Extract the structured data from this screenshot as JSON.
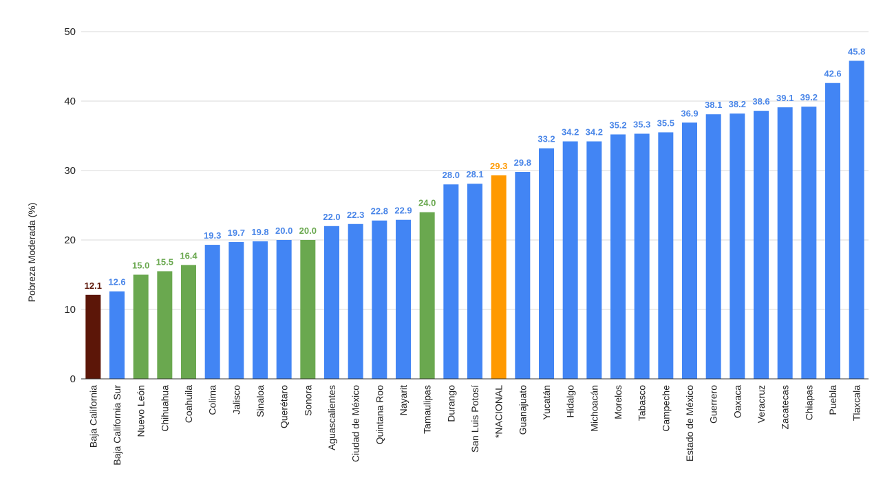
{
  "chart_data": {
    "type": "bar",
    "ylabel": "Pobreza Moderada (%)",
    "xlabel": "",
    "ylim": [
      0,
      50
    ],
    "yticks": [
      0,
      10,
      20,
      30,
      40,
      50
    ],
    "grid": true,
    "legend": "none",
    "categories": [
      "Baja California",
      "Baja California Sur",
      "Nuevo León",
      "Chihuahua",
      "Coahuila",
      "Colima",
      "Jalisco",
      "Sinaloa",
      "Querétaro",
      "Sonora",
      "Aguascalientes",
      "Ciudad de México",
      "Quintana Roo",
      "Nayarit",
      "Tamaulipas",
      "Durango",
      "San Luis Potosí",
      "*NACIONAL",
      "Guanajuato",
      "Yucatán",
      "Hidalgo",
      "Michoacán",
      "Morelos",
      "Tabasco",
      "Campeche",
      "Estado de México",
      "Guerrero",
      "Oaxaca",
      "Veracruz",
      "Zacatecas",
      "Chiapas",
      "Puebla",
      "Tlaxcala"
    ],
    "values": [
      12.1,
      12.6,
      15.0,
      15.5,
      16.4,
      19.3,
      19.7,
      19.8,
      20.0,
      20.0,
      22.0,
      22.3,
      22.8,
      22.9,
      24.0,
      28.0,
      28.1,
      29.3,
      29.8,
      33.2,
      34.2,
      34.2,
      35.2,
      35.3,
      35.5,
      36.9,
      38.1,
      38.2,
      38.6,
      39.1,
      39.2,
      42.6,
      45.8
    ],
    "value_labels": [
      "12.1",
      "12.6",
      "15.0",
      "15.5",
      "16.4",
      "19.3",
      "19.7",
      "19.8",
      "20.0",
      "20.0",
      "22.0",
      "22.3",
      "22.8",
      "22.9",
      "24.0",
      "28.0",
      "28.1",
      "29.3",
      "29.8",
      "33.2",
      "34.2",
      "34.2",
      "35.2",
      "35.3",
      "35.5",
      "36.9",
      "38.1",
      "38.2",
      "38.6",
      "39.1",
      "39.2",
      "42.6",
      "45.8"
    ],
    "bar_colors": [
      "#5c1608",
      "#4285f4",
      "#6aa84f",
      "#6aa84f",
      "#6aa84f",
      "#4285f4",
      "#4285f4",
      "#4285f4",
      "#4285f4",
      "#6aa84f",
      "#4285f4",
      "#4285f4",
      "#4285f4",
      "#4285f4",
      "#6aa84f",
      "#4285f4",
      "#4285f4",
      "#ff9900",
      "#4285f4",
      "#4285f4",
      "#4285f4",
      "#4285f4",
      "#4285f4",
      "#4285f4",
      "#4285f4",
      "#4285f4",
      "#4285f4",
      "#4285f4",
      "#4285f4",
      "#4285f4",
      "#4285f4",
      "#4285f4",
      "#4285f4"
    ],
    "label_colors": [
      "#5c1608",
      "#4a86e8",
      "#6aa84f",
      "#6aa84f",
      "#6aa84f",
      "#4a86e8",
      "#4a86e8",
      "#4a86e8",
      "#4a86e8",
      "#6aa84f",
      "#4a86e8",
      "#4a86e8",
      "#4a86e8",
      "#4a86e8",
      "#6aa84f",
      "#4a86e8",
      "#4a86e8",
      "#ff9900",
      "#4a86e8",
      "#4a86e8",
      "#4a86e8",
      "#4a86e8",
      "#4a86e8",
      "#4a86e8",
      "#4a86e8",
      "#4a86e8",
      "#4a86e8",
      "#4a86e8",
      "#4a86e8",
      "#4a86e8",
      "#4a86e8",
      "#4a86e8",
      "#4a86e8"
    ],
    "gridline_color": "#d9d9d9",
    "baseline_color": "#333333"
  }
}
